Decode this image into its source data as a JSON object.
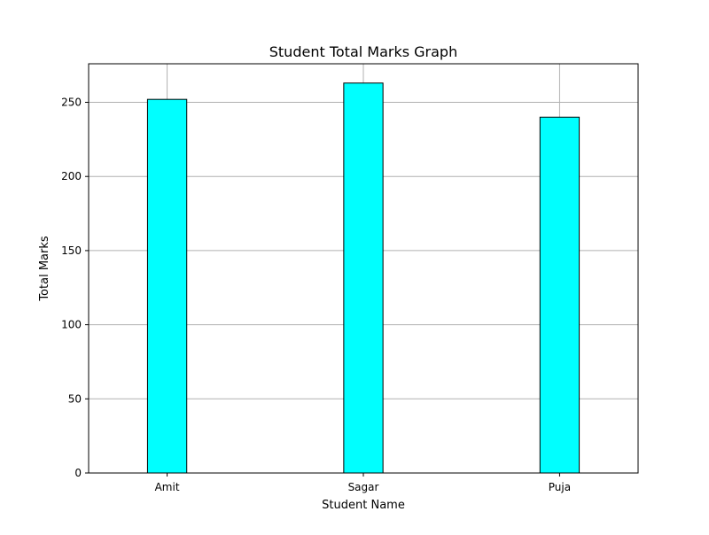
{
  "chart_data": {
    "type": "bar",
    "title": "Student Total Marks Graph",
    "xlabel": "Student Name",
    "ylabel": "Total Marks",
    "categories": [
      "Amit",
      "Sagar",
      "Puja"
    ],
    "values": [
      252,
      263,
      240
    ],
    "ylim": [
      0,
      276
    ],
    "yticks": [
      0,
      50,
      100,
      150,
      200,
      250
    ],
    "grid": true,
    "bar_color": "#00ffff",
    "edge_color": "#000000",
    "grid_color": "#b0b0b0"
  }
}
